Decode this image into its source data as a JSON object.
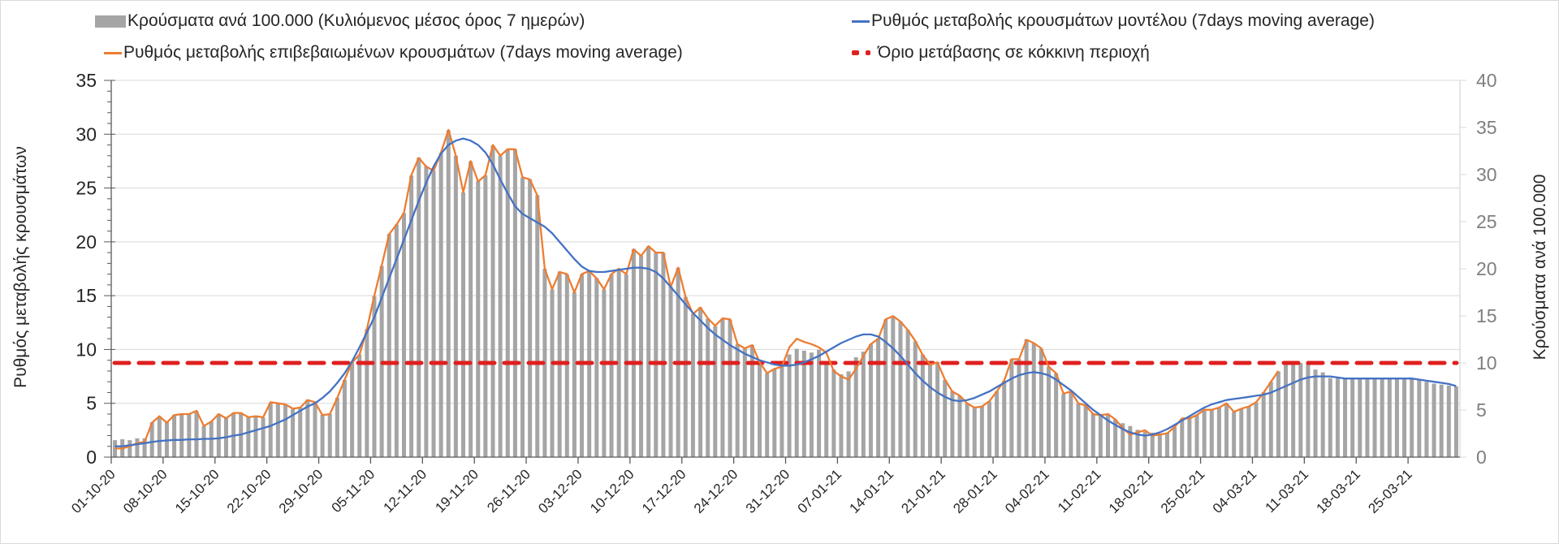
{
  "legend": {
    "bars": "Κρούσματα ανά 100.000 (Κυλιόμενος μέσος όρος 7 ημερών)",
    "model": "Ρυθμός μεταβολής κρουσμάτων μοντέλου (7days moving average)",
    "confirmed": "Ρυθμός μεταβολής επιβεβαιωμένων κρουσμάτων (7days moving average)",
    "threshold": "Όριο μετάβασης σε κόκκινη περιοχή"
  },
  "chart_data": {
    "type": "bar+line",
    "title": "",
    "ylabel_left": "Ρυθμός μεταβολής κρουσμάτων",
    "ylabel_right": "Κρούσματα ανά 100.000",
    "ylim_left": [
      0,
      35
    ],
    "ylim_right": [
      0,
      40
    ],
    "yticks_left": [
      "0",
      "5",
      "10",
      "15",
      "20",
      "25",
      "30",
      "35"
    ],
    "yticks_right": [
      "0",
      "5",
      "10",
      "15",
      "20",
      "25",
      "30",
      "35",
      "40"
    ],
    "grid": true,
    "start_date": "01-10-20",
    "end_date": "31-03-21",
    "n_days": 182,
    "xtick_every_days": 7,
    "xtick_labels": [
      "01-10-20",
      "08-10-20",
      "15-10-20",
      "22-10-20",
      "29-10-20",
      "05-11-20",
      "12-11-20",
      "19-11-20",
      "26-11-20",
      "03-12-20",
      "10-12-20",
      "17-12-20",
      "24-12-20",
      "31-12-20",
      "07-01-21",
      "14-01-21",
      "21-01-21",
      "28-01-21",
      "04-02-21",
      "11-02-21",
      "18-02-21",
      "25-02-21",
      "04-03-21",
      "11-03-21",
      "18-03-21",
      "25-03-21"
    ],
    "colors": {
      "bars": "#a5a5a5",
      "model": "#4472c4",
      "confirmed": "#ed7d31",
      "threshold": "#e01f1f",
      "grid": "#d9d9d9"
    },
    "threshold_right_axis": 10,
    "series": [
      {
        "name": "Κρούσματα ανά 100.000 (Κυλιόμενος μέσος όρος 7 ημερών)",
        "axis": "right",
        "kind": "bar",
        "values": [
          1.8,
          1.9,
          1.8,
          2.0,
          2.0,
          3.7,
          4.3,
          3.7,
          4.5,
          4.6,
          4.6,
          4.9,
          3.3,
          3.8,
          4.6,
          4.1,
          4.7,
          4.7,
          4.2,
          4.3,
          4.2,
          5.8,
          5.7,
          5.6,
          5.1,
          5.3,
          6.1,
          5.8,
          4.5,
          4.6,
          6.3,
          8.2,
          10.1,
          10.9,
          13.6,
          17.1,
          20.3,
          23.7,
          24.7,
          25.9,
          29.9,
          31.8,
          30.9,
          30.4,
          32.3,
          34.7,
          32.0,
          28.1,
          31.4,
          29.3,
          29.9,
          33.1,
          32.0,
          32.7,
          32.7,
          29.7,
          29.5,
          27.8,
          20.0,
          17.8,
          19.7,
          19.4,
          17.5,
          19.4,
          19.8,
          19.0,
          17.8,
          19.4,
          20.0,
          19.4,
          22.1,
          21.4,
          22.4,
          21.7,
          21.7,
          18.1,
          20.1,
          17.0,
          15.2,
          15.9,
          14.7,
          13.9,
          14.7,
          14.6,
          12.0,
          11.5,
          11.9,
          10.1,
          8.9,
          9.4,
          9.6,
          10.9,
          11.5,
          11.3,
          11.1,
          11.4,
          10.0,
          9.3,
          8.8,
          9.1,
          10.6,
          11.2,
          12.0,
          12.6,
          14.6,
          15.0,
          14.4,
          13.5,
          12.3,
          10.9,
          9.8,
          10.1,
          8.2,
          7.0,
          6.5,
          5.7,
          5.3,
          5.4,
          5.9,
          7.0,
          8.1,
          10.4,
          10.4,
          12.5,
          12.1,
          11.5,
          9.6,
          8.9,
          6.7,
          7.0,
          5.7,
          5.5,
          4.6,
          4.5,
          4.6,
          4.0,
          3.6,
          3.3,
          2.9,
          2.7,
          2.6,
          2.5,
          2.6,
          3.2,
          4.1,
          4.1,
          4.5,
          5.0,
          5.0,
          5.3,
          5.7,
          4.8,
          5.1,
          5.4,
          5.8,
          6.9,
          8.0,
          9.1,
          10.0,
          10.0,
          10.0,
          10.0,
          9.3,
          9.0,
          8.4,
          8.4,
          8.3,
          8.3,
          8.3,
          8.3,
          8.3,
          8.3,
          8.3,
          8.3,
          8.3,
          8.3,
          8.2,
          8.0,
          7.8,
          7.7,
          7.6,
          7.5
        ]
      },
      {
        "name": "Ρυθμός μεταβολής επιβεβαιωμένων κρουσμάτων (7days moving average)",
        "axis": "left",
        "kind": "line",
        "values": [
          0.8,
          0.8,
          1.0,
          1.3,
          1.4,
          3.2,
          3.8,
          3.2,
          3.9,
          4.0,
          4.0,
          4.3,
          2.9,
          3.3,
          4.0,
          3.6,
          4.1,
          4.1,
          3.7,
          3.8,
          3.7,
          5.1,
          5.0,
          4.9,
          4.5,
          4.6,
          5.3,
          5.1,
          3.9,
          4.0,
          5.5,
          7.2,
          8.8,
          9.5,
          11.9,
          15.0,
          17.8,
          20.7,
          21.6,
          22.7,
          26.2,
          27.8,
          27.0,
          26.6,
          28.3,
          30.4,
          28.0,
          24.6,
          27.5,
          25.6,
          26.2,
          29.0,
          28.0,
          28.6,
          28.6,
          26.0,
          25.8,
          24.3,
          17.5,
          15.6,
          17.2,
          17.0,
          15.3,
          17.0,
          17.3,
          16.6,
          15.6,
          17.0,
          17.5,
          17.0,
          19.3,
          18.7,
          19.6,
          19.0,
          19.0,
          15.8,
          17.6,
          14.9,
          13.3,
          13.9,
          12.9,
          12.2,
          12.9,
          12.8,
          10.5,
          10.1,
          10.4,
          8.8,
          7.8,
          8.2,
          8.4,
          10.2,
          11.0,
          10.7,
          10.5,
          10.2,
          9.7,
          8.0,
          7.5,
          7.2,
          8.2,
          9.4,
          10.5,
          11.0,
          12.8,
          13.1,
          12.6,
          11.8,
          10.8,
          9.5,
          8.6,
          8.8,
          7.2,
          6.1,
          5.7,
          5.0,
          4.6,
          4.7,
          5.2,
          6.1,
          7.1,
          9.1,
          9.1,
          10.9,
          10.6,
          10.1,
          8.4,
          7.8,
          5.9,
          6.1,
          5.0,
          4.8,
          4.0,
          3.9,
          4.0,
          3.5,
          2.7,
          2.1,
          2.3,
          2.5,
          2.0,
          2.1,
          2.2,
          2.8,
          3.6,
          3.6,
          3.9,
          4.4,
          4.4,
          4.6,
          5.0,
          4.2,
          4.5,
          4.7,
          5.1,
          6.0,
          7.0,
          8.0
        ]
      },
      {
        "name": "Ρυθμός μεταβολής κρουσμάτων μοντέλου (7days moving average)",
        "axis": "left",
        "kind": "line",
        "values": [
          1.0,
          1.0,
          1.1,
          1.2,
          1.3,
          1.4,
          1.5,
          1.55,
          1.6,
          1.6,
          1.65,
          1.65,
          1.7,
          1.7,
          1.75,
          1.85,
          2.0,
          2.1,
          2.3,
          2.5,
          2.7,
          2.9,
          3.2,
          3.5,
          3.9,
          4.3,
          4.7,
          5.0,
          5.5,
          6.1,
          6.9,
          7.8,
          8.9,
          10.2,
          11.6,
          13.0,
          14.8,
          16.6,
          18.4,
          20.2,
          22.0,
          23.8,
          25.5,
          27.0,
          28.2,
          29.0,
          29.4,
          29.6,
          29.4,
          29.0,
          28.3,
          27.2,
          25.8,
          24.5,
          23.3,
          22.6,
          22.2,
          21.8,
          21.4,
          20.8,
          20.0,
          19.2,
          18.4,
          17.7,
          17.3,
          17.2,
          17.2,
          17.3,
          17.4,
          17.5,
          17.6,
          17.6,
          17.5,
          17.2,
          16.6,
          15.8,
          15.0,
          14.2,
          13.4,
          12.7,
          12.0,
          11.4,
          10.9,
          10.4,
          10.0,
          9.6,
          9.3,
          9.0,
          8.8,
          8.6,
          8.5,
          8.5,
          8.6,
          8.8,
          9.1,
          9.4,
          9.8,
          10.2,
          10.6,
          10.9,
          11.2,
          11.4,
          11.4,
          11.2,
          10.7,
          10.1,
          9.4,
          8.6,
          7.8,
          7.1,
          6.5,
          6.0,
          5.6,
          5.3,
          5.2,
          5.3,
          5.5,
          5.8,
          6.1,
          6.5,
          6.9,
          7.3,
          7.6,
          7.8,
          7.9,
          7.8,
          7.6,
          7.2,
          6.7,
          6.2,
          5.6,
          5.0,
          4.4,
          3.9,
          3.4,
          3.0,
          2.6,
          2.3,
          2.1,
          2.0,
          2.1,
          2.3,
          2.6,
          3.0,
          3.4,
          3.8,
          4.2,
          4.6,
          4.9,
          5.1,
          5.3,
          5.4,
          5.5,
          5.6,
          5.7,
          5.8,
          6.0,
          6.3,
          6.6,
          6.9,
          7.2,
          7.4,
          7.5,
          7.5,
          7.5,
          7.4,
          7.3,
          7.3,
          7.3,
          7.3,
          7.3,
          7.3,
          7.3,
          7.3,
          7.3,
          7.3,
          7.2,
          7.1,
          7.0,
          6.9,
          6.8,
          6.6
        ]
      }
    ]
  }
}
